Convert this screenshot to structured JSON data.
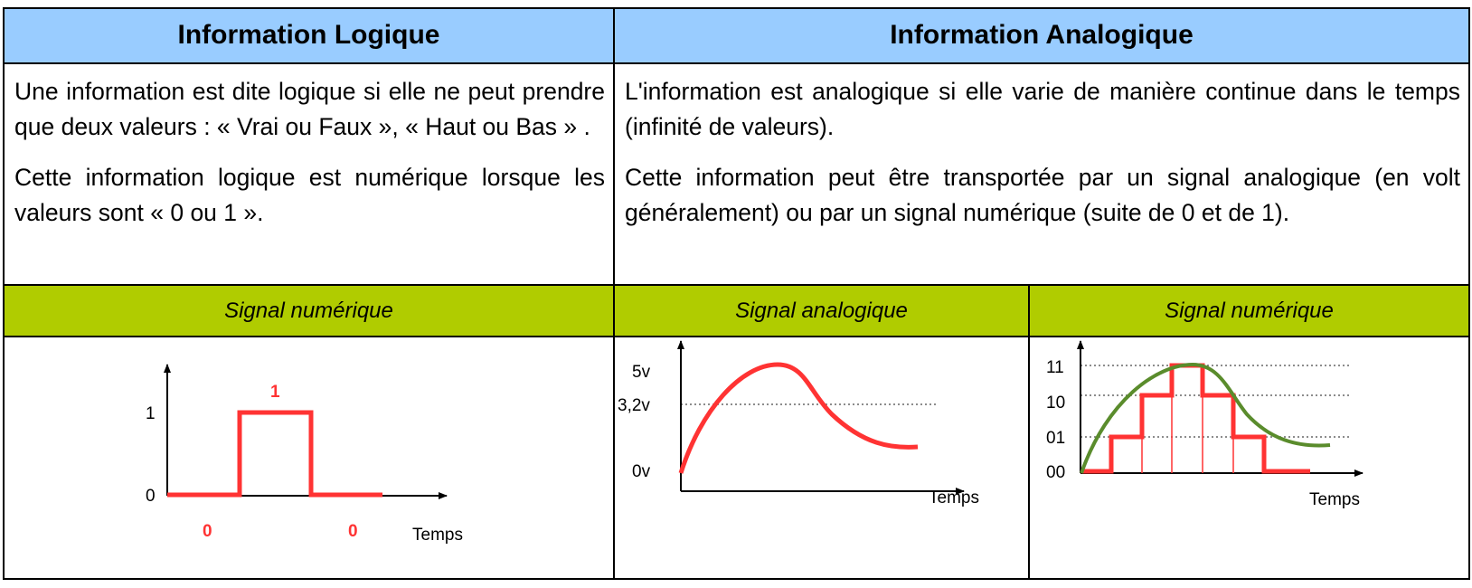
{
  "headers": {
    "logique": "Information Logique",
    "analogique": "Information Analogique"
  },
  "logique": {
    "para1": "Une information est dite logique si elle ne peut prendre que deux valeurs : « Vrai ou Faux », « Haut ou Bas » .",
    "para2": "Cette information logique est numérique lorsque les valeurs sont « 0 ou 1 »."
  },
  "analogique": {
    "para1": "L'information est analogique si elle varie de manière continue dans le temps (infinité de valeurs).",
    "para2": "Cette information peut être transportée par un signal analogique (en volt généralement) ou par un signal numérique (suite de 0 et de 1)."
  },
  "subheaders": {
    "col1": "Signal numérique",
    "col2": "Signal analogique",
    "col3": "Signal numérique"
  },
  "diagram1": {
    "y_labels": [
      "1",
      "0"
    ],
    "level_high_label": "1",
    "level_low_labels": [
      "0",
      "0"
    ],
    "x_label": "Temps",
    "signal": [
      0,
      1,
      0
    ]
  },
  "diagram2": {
    "y_labels": [
      "5v",
      "3,2v",
      "0v"
    ],
    "x_label": "Temps"
  },
  "diagram3": {
    "y_labels": [
      "11",
      "10",
      "01",
      "00"
    ],
    "x_label": "Temps",
    "steps": [
      "00",
      "01",
      "10",
      "11",
      "10",
      "01",
      "00"
    ]
  },
  "colors": {
    "header_bg": "#99ccff",
    "subheader_bg": "#b0cc00",
    "signal": "#ff3333",
    "curve": "#5a8c2c"
  }
}
